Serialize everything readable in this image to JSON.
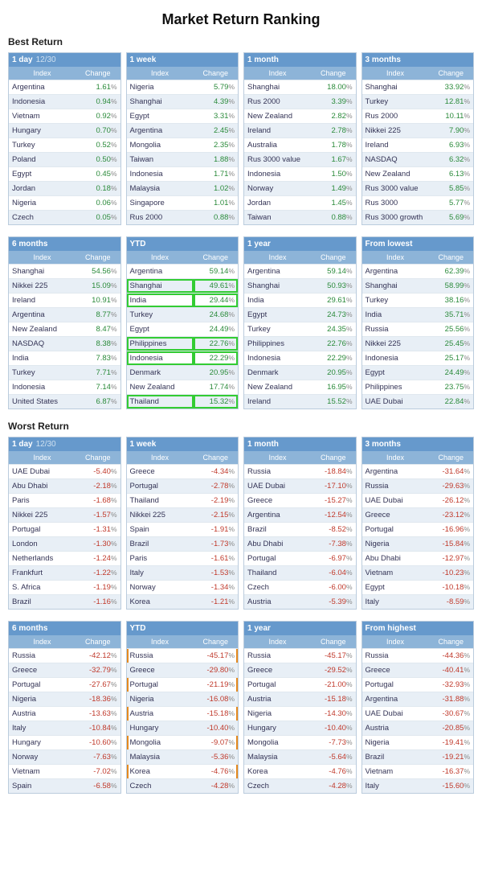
{
  "title": "Market Return Ranking",
  "sections": [
    {
      "heading": "Best Return",
      "value_class": "pos",
      "rows": [
        [
          {
            "title": "1 day",
            "date": "12/30",
            "rows": [
              [
                "Argentina",
                "1.61"
              ],
              [
                "Indonesia",
                "0.94"
              ],
              [
                "Vietnam",
                "0.92"
              ],
              [
                "Hungary",
                "0.70"
              ],
              [
                "Turkey",
                "0.52"
              ],
              [
                "Poland",
                "0.50"
              ],
              [
                "Egypt",
                "0.45"
              ],
              [
                "Jordan",
                "0.18"
              ],
              [
                "Nigeria",
                "0.06"
              ],
              [
                "Czech",
                "0.05"
              ]
            ]
          },
          {
            "title": "1 week",
            "rows": [
              [
                "Nigeria",
                "5.79"
              ],
              [
                "Shanghai",
                "4.39"
              ],
              [
                "Egypt",
                "3.31"
              ],
              [
                "Argentina",
                "2.45"
              ],
              [
                "Mongolia",
                "2.35"
              ],
              [
                "Taiwan",
                "1.88"
              ],
              [
                "Indonesia",
                "1.71"
              ],
              [
                "Malaysia",
                "1.02"
              ],
              [
                "Singapore",
                "1.01"
              ],
              [
                "Rus 2000",
                "0.88"
              ]
            ]
          },
          {
            "title": "1 month",
            "rows": [
              [
                "Shanghai",
                "18.00"
              ],
              [
                "Rus 2000",
                "3.39"
              ],
              [
                "New Zealand",
                "2.82"
              ],
              [
                "Ireland",
                "2.78"
              ],
              [
                "Australia",
                "1.78"
              ],
              [
                "Rus 3000 value",
                "1.67"
              ],
              [
                "Indonesia",
                "1.50"
              ],
              [
                "Norway",
                "1.49"
              ],
              [
                "Jordan",
                "1.45"
              ],
              [
                "Taiwan",
                "0.88"
              ]
            ]
          },
          {
            "title": "3 months",
            "rows": [
              [
                "Shanghai",
                "33.92"
              ],
              [
                "Turkey",
                "12.81"
              ],
              [
                "Rus 2000",
                "10.11"
              ],
              [
                "Nikkei 225",
                "7.90"
              ],
              [
                "Ireland",
                "6.93"
              ],
              [
                "NASDAQ",
                "6.32"
              ],
              [
                "New Zealand",
                "6.13"
              ],
              [
                "Rus 3000 value",
                "5.85"
              ],
              [
                "Rus 3000",
                "5.77"
              ],
              [
                "Rus 3000 growth",
                "5.69"
              ]
            ]
          }
        ],
        [
          {
            "title": "6 months",
            "rows": [
              [
                "Shanghai",
                "54.56"
              ],
              [
                "Nikkei 225",
                "15.09"
              ],
              [
                "Ireland",
                "10.91"
              ],
              [
                "Argentina",
                "8.77"
              ],
              [
                "New Zealand",
                "8.47"
              ],
              [
                "NASDAQ",
                "8.38"
              ],
              [
                "India",
                "7.83"
              ],
              [
                "Turkey",
                "7.71"
              ],
              [
                "Indonesia",
                "7.14"
              ],
              [
                "United States",
                "6.87"
              ]
            ]
          },
          {
            "title": "YTD",
            "highlights": {
              "green": [
                1,
                2,
                5,
                6,
                9
              ]
            },
            "rows": [
              [
                "Argentina",
                "59.14"
              ],
              [
                "Shanghai",
                "49.61"
              ],
              [
                "India",
                "29.44"
              ],
              [
                "Turkey",
                "24.68"
              ],
              [
                "Egypt",
                "24.49"
              ],
              [
                "Philippines",
                "22.76"
              ],
              [
                "Indonesia",
                "22.29"
              ],
              [
                "Denmark",
                "20.95"
              ],
              [
                "New Zealand",
                "17.74"
              ],
              [
                "Thailand",
                "15.32"
              ]
            ]
          },
          {
            "title": "1 year",
            "rows": [
              [
                "Argentina",
                "59.14"
              ],
              [
                "Shanghai",
                "50.93"
              ],
              [
                "India",
                "29.61"
              ],
              [
                "Egypt",
                "24.73"
              ],
              [
                "Turkey",
                "24.35"
              ],
              [
                "Philippines",
                "22.76"
              ],
              [
                "Indonesia",
                "22.29"
              ],
              [
                "Denmark",
                "20.95"
              ],
              [
                "New Zealand",
                "16.95"
              ],
              [
                "Ireland",
                "15.52"
              ]
            ]
          },
          {
            "title": "From lowest",
            "rows": [
              [
                "Argentina",
                "62.39"
              ],
              [
                "Shanghai",
                "58.99"
              ],
              [
                "Turkey",
                "38.16"
              ],
              [
                "India",
                "35.71"
              ],
              [
                "Russia",
                "25.56"
              ],
              [
                "Nikkei 225",
                "25.45"
              ],
              [
                "Indonesia",
                "25.17"
              ],
              [
                "Egypt",
                "24.49"
              ],
              [
                "Philippines",
                "23.75"
              ],
              [
                "UAE Dubai",
                "22.84"
              ]
            ]
          }
        ]
      ]
    },
    {
      "heading": "Worst Return",
      "value_class": "neg",
      "rows": [
        [
          {
            "title": "1 day",
            "date": "12/30",
            "rows": [
              [
                "UAE Dubai",
                "-5.40"
              ],
              [
                "Abu Dhabi",
                "-2.18"
              ],
              [
                "Paris",
                "-1.68"
              ],
              [
                "Nikkei 225",
                "-1.57"
              ],
              [
                "Portugal",
                "-1.31"
              ],
              [
                "London",
                "-1.30"
              ],
              [
                "Netherlands",
                "-1.24"
              ],
              [
                "Frankfurt",
                "-1.22"
              ],
              [
                "S. Africa",
                "-1.19"
              ],
              [
                "Brazil",
                "-1.16"
              ]
            ]
          },
          {
            "title": "1 week",
            "rows": [
              [
                "Greece",
                "-4.34"
              ],
              [
                "Portugal",
                "-2.78"
              ],
              [
                "Thailand",
                "-2.19"
              ],
              [
                "Nikkei 225",
                "-2.15"
              ],
              [
                "Spain",
                "-1.91"
              ],
              [
                "Brazil",
                "-1.73"
              ],
              [
                "Paris",
                "-1.61"
              ],
              [
                "Italy",
                "-1.53"
              ],
              [
                "Norway",
                "-1.34"
              ],
              [
                "Korea",
                "-1.21"
              ]
            ]
          },
          {
            "title": "1 month",
            "rows": [
              [
                "Russia",
                "-18.84"
              ],
              [
                "UAE Dubai",
                "-17.10"
              ],
              [
                "Greece",
                "-15.27"
              ],
              [
                "Argentina",
                "-12.54"
              ],
              [
                "Brazil",
                "-8.52"
              ],
              [
                "Abu Dhabi",
                "-7.38"
              ],
              [
                "Portugal",
                "-6.97"
              ],
              [
                "Thailand",
                "-6.04"
              ],
              [
                "Czech",
                "-6.00"
              ],
              [
                "Austria",
                "-5.39"
              ]
            ]
          },
          {
            "title": "3 months",
            "rows": [
              [
                "Argentina",
                "-31.64"
              ],
              [
                "Russia",
                "-29.63"
              ],
              [
                "UAE Dubai",
                "-26.12"
              ],
              [
                "Greece",
                "-23.12"
              ],
              [
                "Portugal",
                "-16.96"
              ],
              [
                "Nigeria",
                "-15.84"
              ],
              [
                "Abu Dhabi",
                "-12.97"
              ],
              [
                "Vietnam",
                "-10.23"
              ],
              [
                "Egypt",
                "-10.18"
              ],
              [
                "Italy",
                "-8.59"
              ]
            ]
          }
        ],
        [
          {
            "title": "6 months",
            "rows": [
              [
                "Russia",
                "-42.12"
              ],
              [
                "Greece",
                "-32.79"
              ],
              [
                "Portugal",
                "-27.67"
              ],
              [
                "Nigeria",
                "-18.36"
              ],
              [
                "Austria",
                "-13.63"
              ],
              [
                "Italy",
                "-10.84"
              ],
              [
                "Hungary",
                "-10.60"
              ],
              [
                "Norway",
                "-7.63"
              ],
              [
                "Vietnam",
                "-7.02"
              ],
              [
                "Spain",
                "-6.58"
              ]
            ]
          },
          {
            "title": "YTD",
            "panel_highlight": "orange",
            "rows": [
              [
                "Russia",
                "-45.17"
              ],
              [
                "Greece",
                "-29.80"
              ],
              [
                "Portugal",
                "-21.19"
              ],
              [
                "Nigeria",
                "-16.08"
              ],
              [
                "Austria",
                "-15.18"
              ],
              [
                "Hungary",
                "-10.40"
              ],
              [
                "Mongolia",
                "-9.07"
              ],
              [
                "Malaysia",
                "-5.36"
              ],
              [
                "Korea",
                "-4.76"
              ],
              [
                "Czech",
                "-4.28"
              ]
            ]
          },
          {
            "title": "1 year",
            "rows": [
              [
                "Russia",
                "-45.17"
              ],
              [
                "Greece",
                "-29.52"
              ],
              [
                "Portugal",
                "-21.00"
              ],
              [
                "Austria",
                "-15.18"
              ],
              [
                "Nigeria",
                "-14.30"
              ],
              [
                "Hungary",
                "-10.40"
              ],
              [
                "Mongolia",
                "-7.73"
              ],
              [
                "Malaysia",
                "-5.64"
              ],
              [
                "Korea",
                "-4.76"
              ],
              [
                "Czech",
                "-4.28"
              ]
            ]
          },
          {
            "title": "From highest",
            "rows": [
              [
                "Russia",
                "-44.36"
              ],
              [
                "Greece",
                "-40.41"
              ],
              [
                "Portugal",
                "-32.93"
              ],
              [
                "Argentina",
                "-31.88"
              ],
              [
                "UAE Dubai",
                "-30.67"
              ],
              [
                "Austria",
                "-20.85"
              ],
              [
                "Nigeria",
                "-19.41"
              ],
              [
                "Brazil",
                "-19.21"
              ],
              [
                "Vietnam",
                "-16.37"
              ],
              [
                "Italy",
                "-15.60"
              ]
            ]
          }
        ]
      ]
    }
  ],
  "columns": [
    "Index",
    "Change"
  ],
  "colors": {
    "header_bg": "#6699cc",
    "subheader_bg": "#8db4d8",
    "row_alt_bg": "#e8eff6",
    "positive": "#2a8a3a",
    "negative": "#c0392b",
    "highlight_green": "#33cc33",
    "highlight_orange": "#e58a1f"
  }
}
